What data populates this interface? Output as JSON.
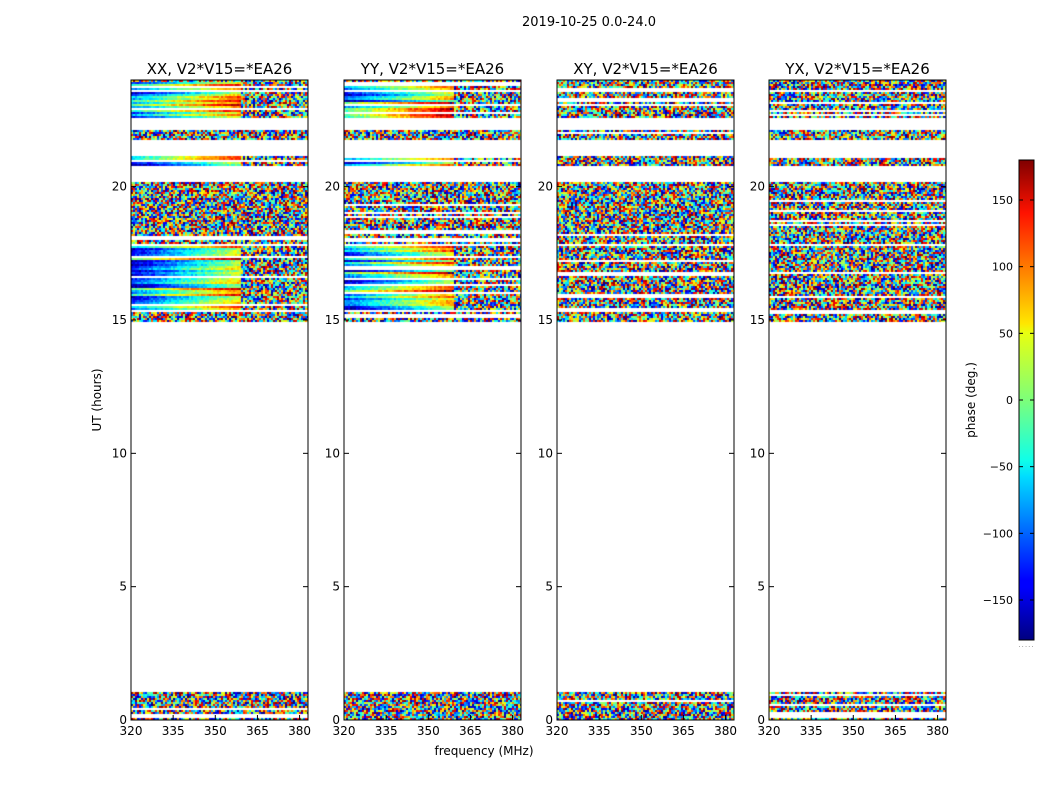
{
  "figure": {
    "title": "2019-10-25 0.0-24.0",
    "xlabel": "frequency (MHz)",
    "ylabel": "UT (hours)"
  },
  "chart_data": {
    "type": "heatmap",
    "title": "2019-10-25 0.0-24.0",
    "xlabel": "frequency (MHz)",
    "ylabel": "UT (hours)",
    "xlim": [
      320,
      383
    ],
    "ylim": [
      0,
      24
    ],
    "x_ticks": [
      320,
      335,
      350,
      365,
      380
    ],
    "y_ticks": [
      0,
      5,
      10,
      15,
      20
    ],
    "panels": [
      {
        "title": "XX, V2*V15=*EA26",
        "coherent": true
      },
      {
        "title": "YY, V2*V15=*EA26",
        "coherent": true
      },
      {
        "title": "XY, V2*V15=*EA26",
        "coherent": false
      },
      {
        "title": "YX, V2*V15=*EA26",
        "coherent": false
      }
    ],
    "data_ranges_ut_hours": [
      [
        0.0,
        0.45
      ],
      [
        0.5,
        0.75
      ],
      [
        0.75,
        1.05
      ],
      [
        15.0,
        15.35
      ],
      [
        15.45,
        17.8
      ],
      [
        17.9,
        20.2
      ],
      [
        20.8,
        21.2
      ],
      [
        21.8,
        22.2
      ],
      [
        22.6,
        23.6
      ],
      [
        23.7,
        24.0
      ]
    ],
    "colorbar": {
      "label": "phase (deg.)",
      "range": [
        -180,
        180
      ],
      "ticks": [
        -150,
        -100,
        -50,
        0,
        50,
        100,
        150
      ],
      "colormap": "jet",
      "footer": "· · · · ·"
    }
  }
}
